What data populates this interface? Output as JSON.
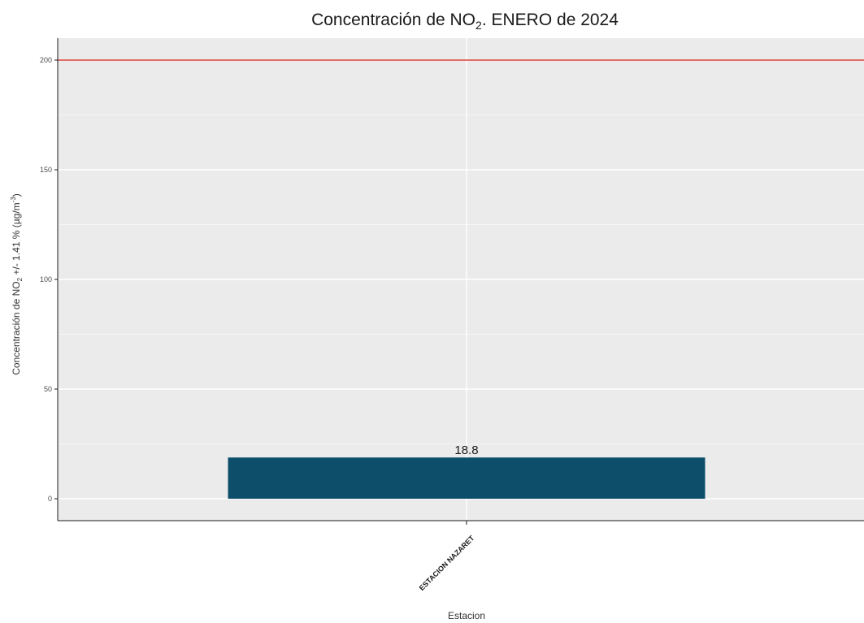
{
  "chart_data": {
    "type": "bar",
    "title_main": "Concentración de NO",
    "title_sub": "2",
    "title_tail": ". ENERO de 2024",
    "xlabel": "Estacion",
    "ylabel_pre": "Concentración de NO",
    "ylabel_sub": "2",
    "ylabel_mid": " +/- 1.41 % (µg/m",
    "ylabel_sup": "-3",
    "ylabel_post": ")",
    "categories": [
      "ESTACION NAZARET"
    ],
    "values": [
      18.8
    ],
    "value_labels": [
      "18.8"
    ],
    "y_ticks": [
      0,
      50,
      100,
      150,
      200
    ],
    "y_tick_labels": [
      "0",
      "50",
      "100",
      "150",
      "200"
    ],
    "ylim": [
      -10,
      210
    ],
    "reference_line": 200,
    "grid": true,
    "colors": {
      "bar": "#0d4f6b",
      "reference_line": "#e0403a",
      "panel_bg": "#ebebeb",
      "grid": "#ffffff",
      "axis": "#1a1a1a"
    }
  }
}
